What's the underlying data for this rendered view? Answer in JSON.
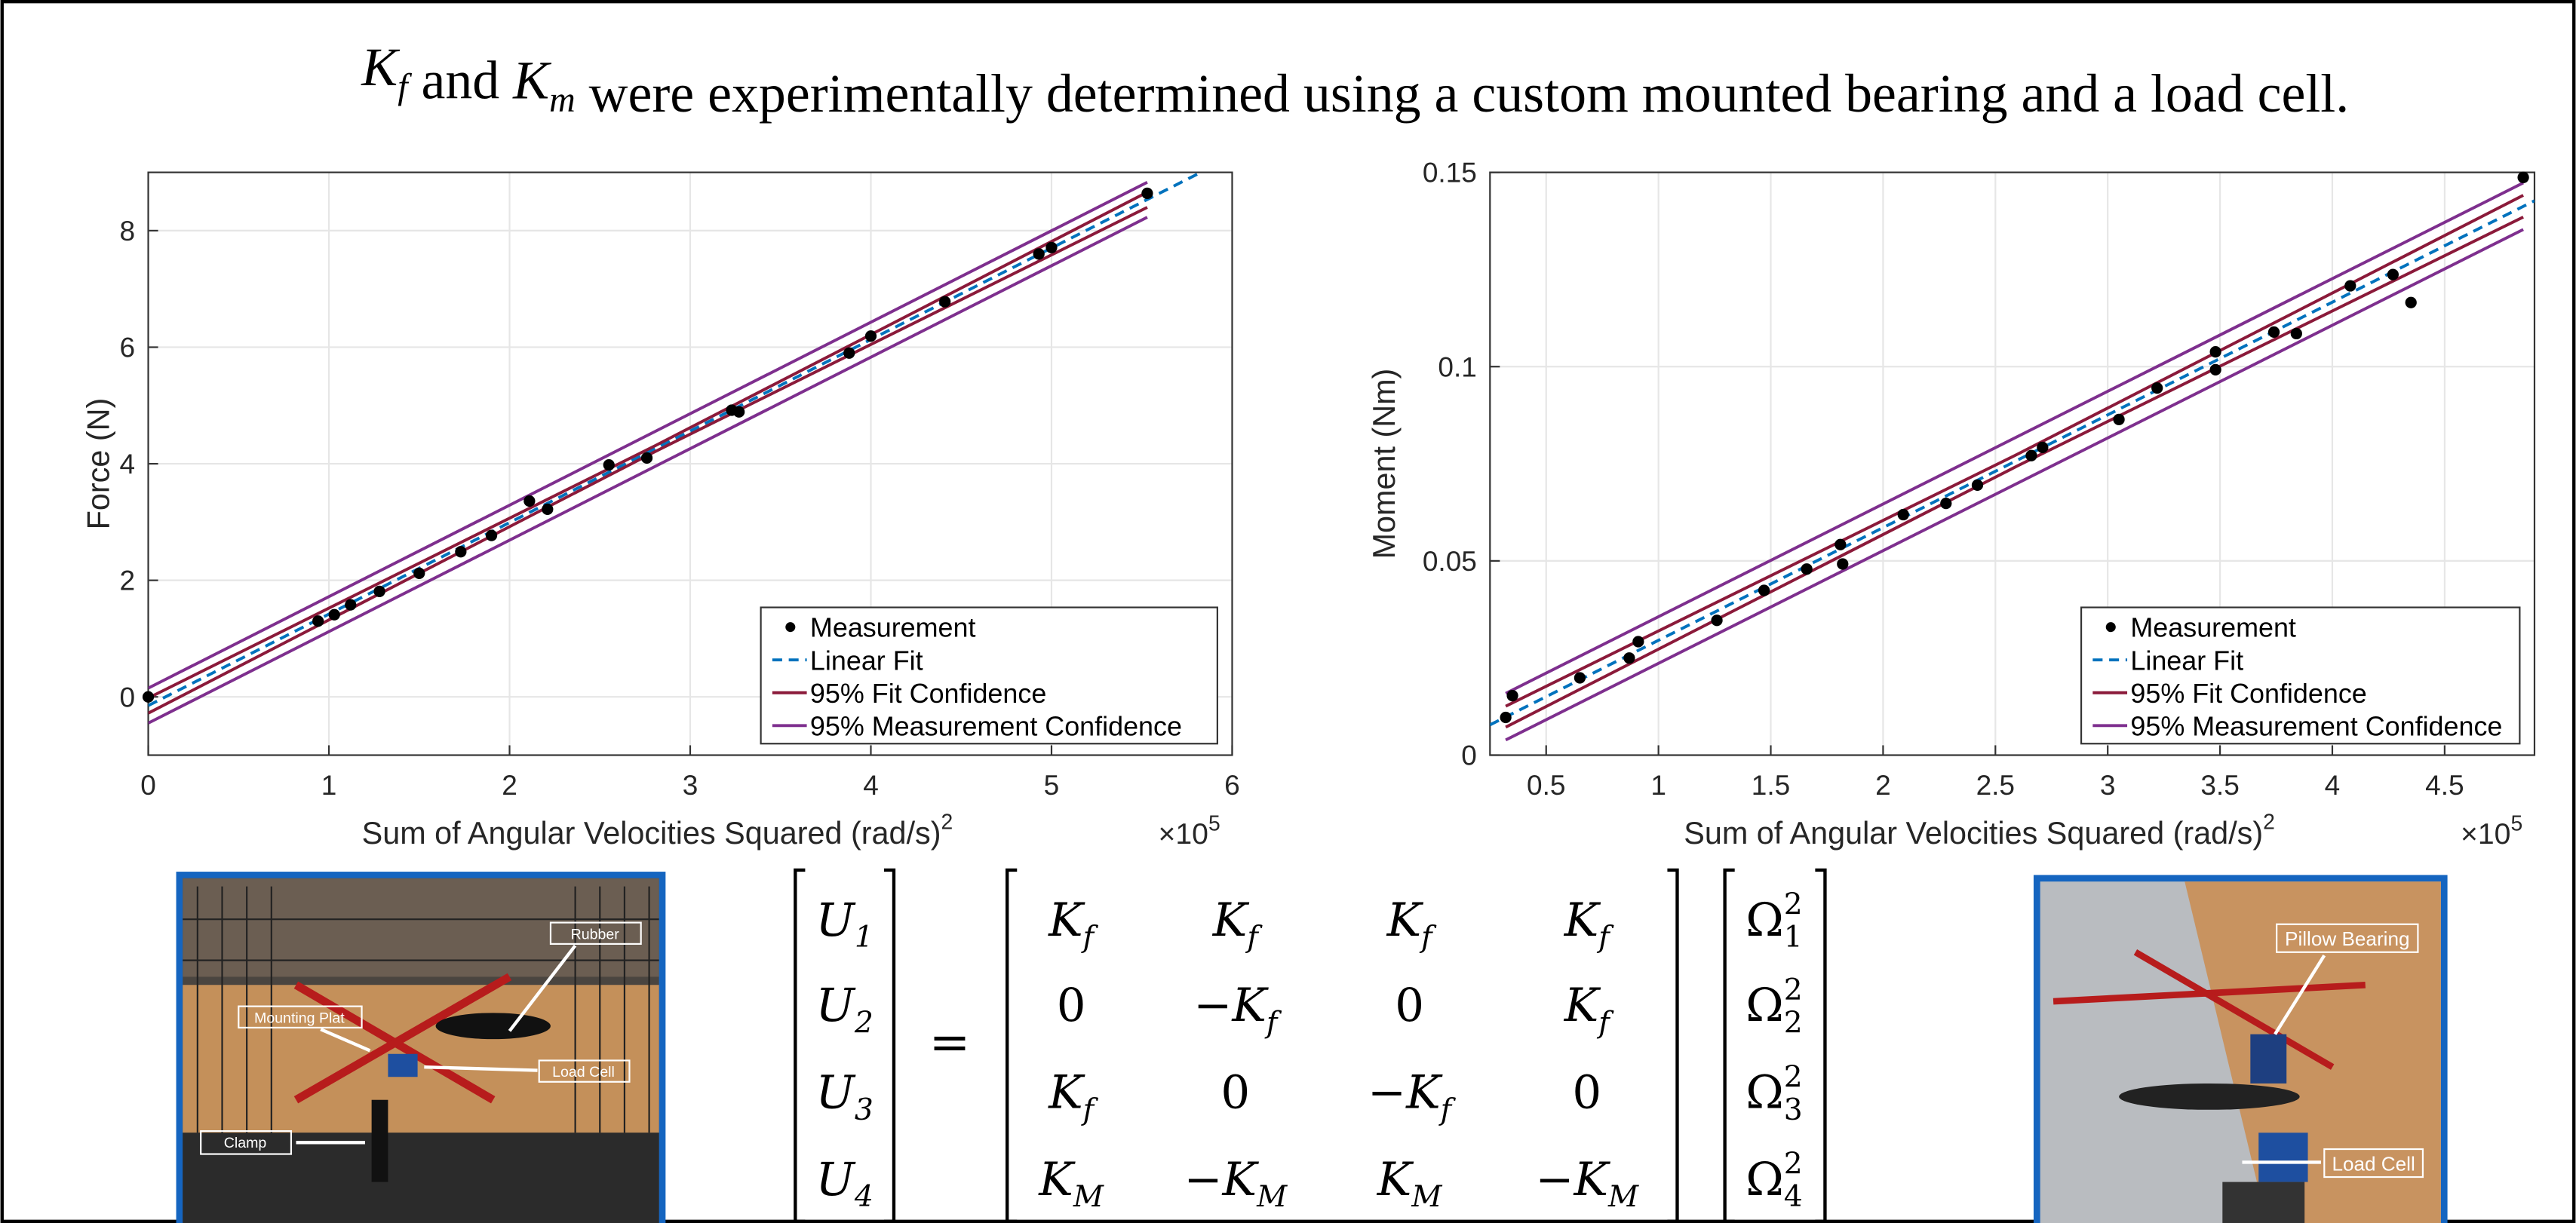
{
  "title": [
    {
      "base": "K",
      "sub": "f"
    },
    {
      "base": " and "
    },
    {
      "base": "K",
      "sub": "m"
    },
    {
      "base": " were experimentally determined using a custom mounted bearing and a load cell."
    }
  ],
  "chart_data": [
    {
      "type": "scatter",
      "ylabel": "Force (N)",
      "xlabel": {
        "text": "Sum of Angular Velocities Squared (rad/s)",
        "sup": "2"
      },
      "x_multiplier": {
        "base": "×10",
        "sup": "5"
      },
      "xlim": [
        0,
        6
      ],
      "xticks": [
        0,
        1,
        2,
        3,
        4,
        5,
        6
      ],
      "ylim": [
        -1,
        9
      ],
      "yticks": [
        0,
        2,
        4,
        6,
        8
      ],
      "grid": true,
      "legend": "lower right",
      "series": [
        {
          "name": "Measurement",
          "color": "#000000",
          "style": "marker",
          "x": [
            0,
            0.94,
            1.03,
            1.12,
            1.28,
            1.5,
            1.73,
            1.9,
            2.11,
            2.21,
            2.55,
            2.76,
            3.23,
            3.27,
            3.88,
            4.0,
            4.41,
            4.93,
            5.0,
            5.53
          ],
          "values": [
            0,
            1.3,
            1.41,
            1.58,
            1.81,
            2.12,
            2.49,
            2.77,
            3.36,
            3.22,
            3.98,
            4.1,
            4.92,
            4.89,
            5.9,
            6.19,
            6.78,
            7.6,
            7.71,
            8.64
          ]
        },
        {
          "name": "Linear Fit",
          "color": "#0072bd",
          "style": "dashed",
          "x": [
            0,
            5.82
          ],
          "values": [
            -0.15,
            8.99
          ]
        },
        {
          "name": "95% Fit Confidence",
          "color": "#8b1a3a",
          "style": "solid",
          "x": [
            0,
            2.8,
            5.53
          ],
          "lower": [
            -0.28,
            4.2,
            8.4
          ],
          "upper": [
            -0.02,
            4.3,
            8.66
          ]
        },
        {
          "name": "95% Measurement Confidence",
          "color": "#7e2f8e",
          "style": "solid",
          "x": [
            0,
            5.53
          ],
          "lower": [
            -0.45,
            8.23
          ],
          "upper": [
            0.15,
            8.83
          ]
        }
      ]
    },
    {
      "type": "scatter",
      "ylabel": "Moment (Nm)",
      "xlabel": {
        "text": "Sum of Angular Velocities Squared (rad/s)",
        "sup": "2"
      },
      "x_multiplier": {
        "base": "×10",
        "sup": "5"
      },
      "xlim": [
        0.25,
        4.9
      ],
      "xticks": [
        0.5,
        1,
        1.5,
        2,
        2.5,
        3,
        3.5,
        4,
        4.5
      ],
      "ylim": [
        0,
        0.15
      ],
      "yticks": [
        0,
        0.05,
        0.1,
        0.15
      ],
      "grid": true,
      "legend": "lower right",
      "series": [
        {
          "name": "Measurement",
          "color": "#000000",
          "style": "marker",
          "x": [
            0.32,
            0.35,
            0.65,
            0.87,
            0.91,
            1.26,
            1.47,
            1.66,
            1.81,
            1.82,
            2.09,
            2.28,
            2.42,
            2.66,
            2.71,
            3.05,
            3.22,
            3.48,
            3.48,
            3.74,
            3.84,
            4.08,
            4.27,
            4.35,
            4.85
          ],
          "values": [
            0.0097,
            0.0153,
            0.0199,
            0.025,
            0.0292,
            0.0347,
            0.0424,
            0.0479,
            0.0542,
            0.0492,
            0.0619,
            0.0648,
            0.0695,
            0.0771,
            0.0792,
            0.0864,
            0.0945,
            0.0992,
            0.1038,
            0.1089,
            0.1085,
            0.1208,
            0.1237,
            0.1165,
            0.1487
          ]
        },
        {
          "name": "Linear Fit",
          "color": "#0072bd",
          "style": "dashed",
          "x": [
            0.25,
            4.9
          ],
          "values": [
            0.0078,
            0.1427
          ]
        },
        {
          "name": "95% Fit Confidence",
          "color": "#8b1a3a",
          "style": "solid",
          "x": [
            0.32,
            2.6,
            4.85
          ],
          "lower": [
            0.0072,
            0.0745,
            0.1385
          ],
          "upper": [
            0.0126,
            0.0775,
            0.1441
          ]
        },
        {
          "name": "95% Measurement Confidence",
          "color": "#7e2f8e",
          "style": "solid",
          "x": [
            0.32,
            4.85
          ],
          "lower": [
            0.0039,
            0.1353
          ],
          "upper": [
            0.0159,
            0.1473
          ]
        }
      ]
    }
  ],
  "equation": {
    "lhs": [
      {
        "base": "U",
        "sub": "1"
      },
      {
        "base": "U",
        "sub": "2"
      },
      {
        "base": "U",
        "sub": "3"
      },
      {
        "base": "U",
        "sub": "4"
      }
    ],
    "equals": "=",
    "matrix": [
      [
        {
          "base": "K",
          "sub": "f"
        },
        {
          "base": "K",
          "sub": "f"
        },
        {
          "base": "K",
          "sub": "f"
        },
        {
          "base": "K",
          "sub": "f"
        }
      ],
      [
        {
          "base": "0"
        },
        {
          "base": "−K",
          "sub": "f"
        },
        {
          "base": "0"
        },
        {
          "base": "K",
          "sub": "f"
        }
      ],
      [
        {
          "base": "K",
          "sub": "f"
        },
        {
          "base": "0"
        },
        {
          "base": "−K",
          "sub": "f"
        },
        {
          "base": "0"
        }
      ],
      [
        {
          "base": "K",
          "sub": "M"
        },
        {
          "base": "−K",
          "sub": "M"
        },
        {
          "base": "K",
          "sub": "M"
        },
        {
          "base": "−K",
          "sub": "M"
        }
      ]
    ],
    "rhs": [
      {
        "base": "Ω",
        "sub": "1",
        "sup": "2"
      },
      {
        "base": "Ω",
        "sub": "2",
        "sup": "2"
      },
      {
        "base": "Ω",
        "sub": "3",
        "sup": "2"
      },
      {
        "base": "Ω",
        "sub": "4",
        "sup": "2"
      }
    ]
  },
  "photos": [
    {
      "labels": [
        "Rubber",
        "Mounting Plat",
        "Load Cell",
        "Clamp"
      ]
    },
    {
      "labels": [
        "Pillow Bearing",
        "Load Cell"
      ]
    }
  ]
}
